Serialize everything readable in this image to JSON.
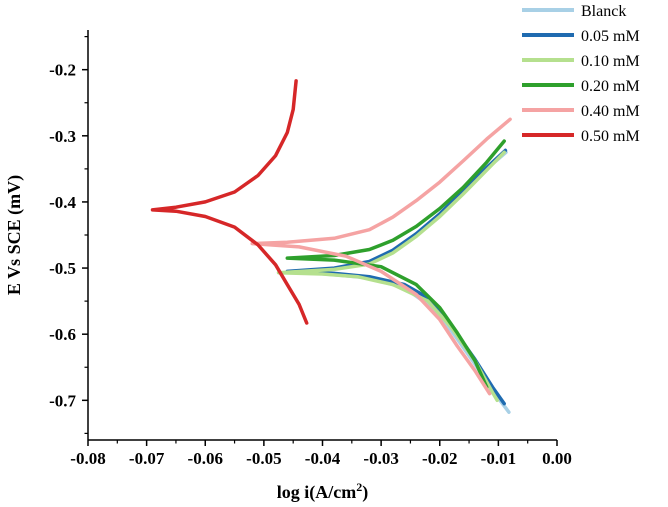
{
  "chart_data": {
    "type": "line",
    "title": "",
    "xlabel": "log i(A/cm",
    "xlabel_sup": "2",
    "xlabel_close": ")",
    "ylabel": "E Vs SCE (mV)",
    "xlim": [
      -0.08,
      0.0
    ],
    "ylim": [
      -0.76,
      -0.14
    ],
    "xticks": [
      "-0.08",
      "-0.07",
      "-0.06",
      "-0.05",
      "-0.04",
      "-0.03",
      "-0.02",
      "-0.01",
      "0.00"
    ],
    "yticks": [
      "-0.2",
      "-0.3",
      "-0.4",
      "-0.5",
      "-0.6",
      "-0.7"
    ],
    "legend_position": "top-right",
    "grid": false,
    "series": [
      {
        "name": "Blanck",
        "color": "#a8d0e6",
        "points": [
          [
            -0.0087,
            -0.325
          ],
          [
            -0.012,
            -0.35
          ],
          [
            -0.016,
            -0.385
          ],
          [
            -0.02,
            -0.42
          ],
          [
            -0.024,
            -0.45
          ],
          [
            -0.028,
            -0.475
          ],
          [
            -0.032,
            -0.492
          ],
          [
            -0.038,
            -0.501
          ],
          [
            -0.045,
            -0.505
          ],
          [
            -0.038,
            -0.51
          ],
          [
            -0.032,
            -0.515
          ],
          [
            -0.026,
            -0.53
          ],
          [
            -0.022,
            -0.555
          ],
          [
            -0.018,
            -0.595
          ],
          [
            -0.014,
            -0.645
          ],
          [
            -0.011,
            -0.685
          ],
          [
            -0.0082,
            -0.718
          ]
        ]
      },
      {
        "name": "0.05 mM",
        "color": "#1f6bb0",
        "points": [
          [
            -0.0088,
            -0.322
          ],
          [
            -0.012,
            -0.348
          ],
          [
            -0.016,
            -0.383
          ],
          [
            -0.02,
            -0.418
          ],
          [
            -0.024,
            -0.448
          ],
          [
            -0.028,
            -0.473
          ],
          [
            -0.032,
            -0.49
          ],
          [
            -0.038,
            -0.5
          ],
          [
            -0.046,
            -0.505
          ],
          [
            -0.038,
            -0.508
          ],
          [
            -0.032,
            -0.513
          ],
          [
            -0.026,
            -0.525
          ],
          [
            -0.022,
            -0.545
          ],
          [
            -0.018,
            -0.588
          ],
          [
            -0.014,
            -0.638
          ],
          [
            -0.011,
            -0.68
          ],
          [
            -0.009,
            -0.705
          ]
        ]
      },
      {
        "name": "0.10 mM",
        "color": "#b5e08e",
        "points": [
          [
            -0.009,
            -0.325
          ],
          [
            -0.012,
            -0.352
          ],
          [
            -0.016,
            -0.388
          ],
          [
            -0.02,
            -0.422
          ],
          [
            -0.024,
            -0.452
          ],
          [
            -0.028,
            -0.477
          ],
          [
            -0.032,
            -0.494
          ],
          [
            -0.038,
            -0.502
          ],
          [
            -0.0475,
            -0.507
          ],
          [
            -0.04,
            -0.509
          ],
          [
            -0.034,
            -0.513
          ],
          [
            -0.028,
            -0.525
          ],
          [
            -0.022,
            -0.55
          ],
          [
            -0.018,
            -0.59
          ],
          [
            -0.014,
            -0.64
          ],
          [
            -0.011,
            -0.688
          ],
          [
            -0.0102,
            -0.7
          ]
        ]
      },
      {
        "name": "0.20 mM",
        "color": "#2ea02c",
        "points": [
          [
            -0.009,
            -0.308
          ],
          [
            -0.012,
            -0.34
          ],
          [
            -0.016,
            -0.378
          ],
          [
            -0.02,
            -0.41
          ],
          [
            -0.024,
            -0.437
          ],
          [
            -0.028,
            -0.458
          ],
          [
            -0.032,
            -0.472
          ],
          [
            -0.038,
            -0.481
          ],
          [
            -0.046,
            -0.485
          ],
          [
            -0.038,
            -0.488
          ],
          [
            -0.03,
            -0.498
          ],
          [
            -0.024,
            -0.525
          ],
          [
            -0.02,
            -0.56
          ],
          [
            -0.017,
            -0.598
          ],
          [
            -0.014,
            -0.64
          ],
          [
            -0.012,
            -0.68
          ]
        ]
      },
      {
        "name": "0.40 mM",
        "color": "#f5a3a3",
        "points": [
          [
            -0.008,
            -0.275
          ],
          [
            -0.012,
            -0.305
          ],
          [
            -0.016,
            -0.338
          ],
          [
            -0.02,
            -0.37
          ],
          [
            -0.024,
            -0.398
          ],
          [
            -0.028,
            -0.423
          ],
          [
            -0.032,
            -0.442
          ],
          [
            -0.038,
            -0.455
          ],
          [
            -0.046,
            -0.461
          ],
          [
            -0.052,
            -0.463
          ],
          [
            -0.044,
            -0.468
          ],
          [
            -0.036,
            -0.482
          ],
          [
            -0.03,
            -0.505
          ],
          [
            -0.024,
            -0.54
          ],
          [
            -0.02,
            -0.578
          ],
          [
            -0.017,
            -0.618
          ],
          [
            -0.014,
            -0.655
          ],
          [
            -0.0115,
            -0.69
          ]
        ]
      },
      {
        "name": "0.50 mM",
        "color": "#d62728",
        "points": [
          [
            -0.0445,
            -0.217
          ],
          [
            -0.045,
            -0.26
          ],
          [
            -0.046,
            -0.295
          ],
          [
            -0.048,
            -0.33
          ],
          [
            -0.051,
            -0.36
          ],
          [
            -0.055,
            -0.385
          ],
          [
            -0.06,
            -0.4
          ],
          [
            -0.065,
            -0.408
          ],
          [
            -0.069,
            -0.412
          ],
          [
            -0.065,
            -0.414
          ],
          [
            -0.06,
            -0.422
          ],
          [
            -0.055,
            -0.438
          ],
          [
            -0.051,
            -0.465
          ],
          [
            -0.048,
            -0.495
          ],
          [
            -0.046,
            -0.525
          ],
          [
            -0.044,
            -0.555
          ],
          [
            -0.0427,
            -0.583
          ]
        ]
      }
    ]
  }
}
